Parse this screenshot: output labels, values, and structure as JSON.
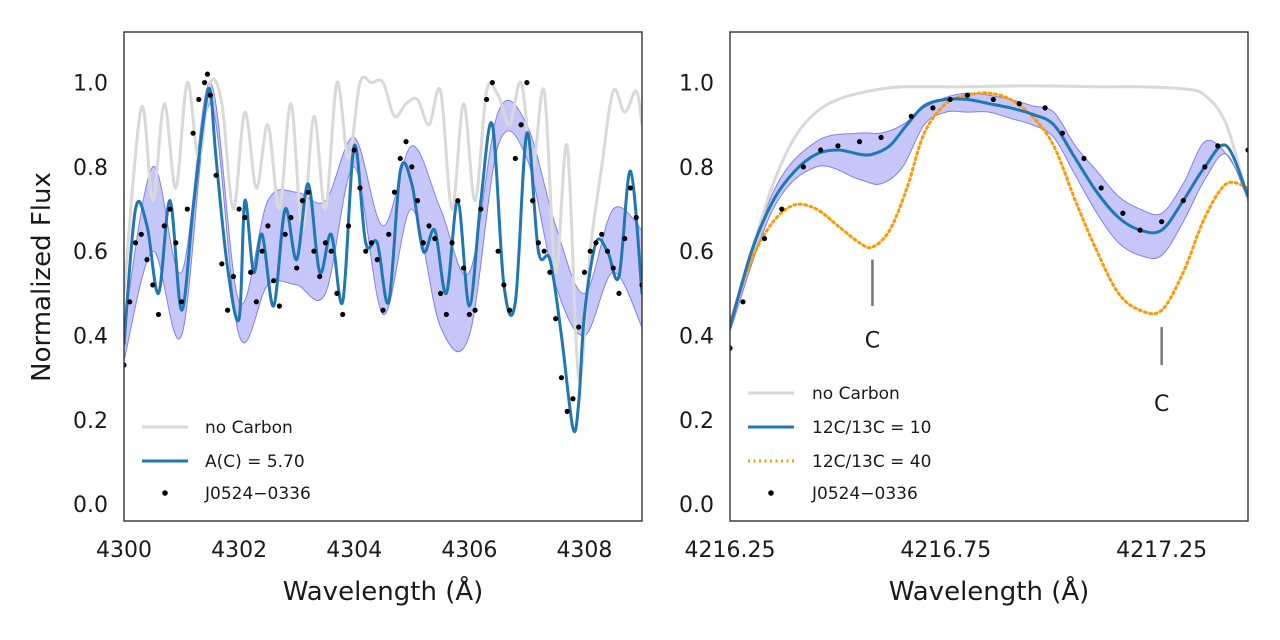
{
  "chart_data": [
    {
      "type": "line",
      "panel": "left",
      "xlabel": "Wavelength (Å)",
      "ylabel": "Normalized Flux",
      "xlim": [
        4300,
        4309
      ],
      "ylim": [
        -0.04,
        1.12
      ],
      "xticks": [
        4300,
        4302,
        4304,
        4306,
        4308
      ],
      "xtick_labels": [
        "4300",
        "4302",
        "4304",
        "4306",
        "4308"
      ],
      "yticks": [
        0.0,
        0.2,
        0.4,
        0.6,
        0.8,
        1.0
      ],
      "ytick_labels": [
        "0.0",
        "0.2",
        "0.4",
        "0.6",
        "0.8",
        "1.0"
      ],
      "legend": {
        "position": "lower-left",
        "entries": [
          "no Carbon",
          "A(C) = 5.70",
          "J0524−0336"
        ]
      },
      "colors": {
        "no_carbon": "#d9d9d9",
        "model": "#1f77b4",
        "band": "#8080f0",
        "data": "#000000"
      },
      "series": [
        {
          "name": "no Carbon",
          "style": "line",
          "x": [
            4300.0,
            4300.3,
            4300.5,
            4300.7,
            4300.9,
            4301.1,
            4301.3,
            4301.5,
            4301.7,
            4301.9,
            4302.1,
            4302.3,
            4302.5,
            4302.7,
            4302.9,
            4303.1,
            4303.3,
            4303.5,
            4303.7,
            4303.9,
            4304.1,
            4304.3,
            4304.5,
            4304.7,
            4304.9,
            4305.1,
            4305.3,
            4305.5,
            4305.7,
            4305.9,
            4306.1,
            4306.3,
            4306.5,
            4306.7,
            4306.9,
            4307.1,
            4307.3,
            4307.5,
            4307.7,
            4307.9,
            4308.1,
            4308.3,
            4308.5,
            4308.7,
            4308.9,
            4309.0
          ],
          "y": [
            0.5,
            0.94,
            0.72,
            0.95,
            0.75,
            1.0,
            0.82,
            1.0,
            0.95,
            0.7,
            0.93,
            0.75,
            0.9,
            0.7,
            0.95,
            0.65,
            0.92,
            0.7,
            1.0,
            0.82,
            1.0,
            1.0,
            1.0,
            0.92,
            0.95,
            0.96,
            0.9,
            0.98,
            0.7,
            0.95,
            0.72,
            0.98,
            0.97,
            0.9,
            1.0,
            0.8,
            0.98,
            0.55,
            0.85,
            0.3,
            0.6,
            0.8,
            0.98,
            0.93,
            0.98,
            0.9
          ]
        },
        {
          "name": "A(C) = 5.70",
          "style": "line",
          "x": [
            4300.0,
            4300.2,
            4300.4,
            4300.6,
            4300.8,
            4301.0,
            4301.2,
            4301.4,
            4301.5,
            4301.6,
            4301.8,
            4302.0,
            4302.1,
            4302.25,
            4302.4,
            4302.6,
            4302.8,
            4303.0,
            4303.2,
            4303.4,
            4303.6,
            4303.8,
            4304.0,
            4304.2,
            4304.4,
            4304.6,
            4304.8,
            4305.0,
            4305.2,
            4305.4,
            4305.6,
            4305.8,
            4306.0,
            4306.2,
            4306.4,
            4306.6,
            4306.8,
            4307.0,
            4307.2,
            4307.4,
            4307.6,
            4307.8,
            4307.9,
            4308.0,
            4308.2,
            4308.4,
            4308.6,
            4308.8,
            4309.0
          ],
          "y": [
            0.38,
            0.7,
            0.66,
            0.5,
            0.72,
            0.46,
            0.7,
            0.93,
            0.98,
            0.82,
            0.56,
            0.44,
            0.72,
            0.55,
            0.64,
            0.47,
            0.7,
            0.58,
            0.76,
            0.55,
            0.64,
            0.48,
            0.85,
            0.62,
            0.62,
            0.48,
            0.79,
            0.76,
            0.6,
            0.65,
            0.5,
            0.72,
            0.47,
            0.72,
            0.9,
            0.52,
            0.48,
            0.88,
            0.6,
            0.58,
            0.4,
            0.18,
            0.24,
            0.45,
            0.62,
            0.6,
            0.54,
            0.79,
            0.5
          ]
        },
        {
          "name": "A(C) band",
          "style": "band",
          "x": [
            4300.0,
            4300.5,
            4301.0,
            4301.5,
            4302.0,
            4302.5,
            4303.0,
            4303.5,
            4304.0,
            4304.5,
            4305.0,
            4305.5,
            4306.0,
            4306.5,
            4307.0,
            4307.5,
            4308.0,
            4308.5,
            4309.0
          ],
          "upper": [
            0.42,
            0.8,
            0.55,
            1.0,
            0.48,
            0.72,
            0.74,
            0.72,
            0.87,
            0.66,
            0.85,
            0.7,
            0.55,
            0.93,
            0.9,
            0.66,
            0.5,
            0.7,
            0.65
          ],
          "lower": [
            0.34,
            0.6,
            0.4,
            0.95,
            0.4,
            0.52,
            0.52,
            0.5,
            0.8,
            0.45,
            0.7,
            0.42,
            0.4,
            0.85,
            0.82,
            0.52,
            0.4,
            0.55,
            0.42
          ]
        },
        {
          "name": "J0524−0336",
          "style": "scatter",
          "x": [
            4300.0,
            4300.1,
            4300.2,
            4300.3,
            4300.4,
            4300.5,
            4300.6,
            4300.7,
            4300.8,
            4300.9,
            4301.0,
            4301.1,
            4301.2,
            4301.3,
            4301.4,
            4301.45,
            4301.5,
            4301.6,
            4301.7,
            4301.8,
            4301.9,
            4302.0,
            4302.1,
            4302.2,
            4302.3,
            4302.4,
            4302.5,
            4302.6,
            4302.7,
            4302.8,
            4302.9,
            4303.0,
            4303.1,
            4303.2,
            4303.3,
            4303.4,
            4303.5,
            4303.6,
            4303.7,
            4303.8,
            4303.9,
            4304.0,
            4304.1,
            4304.2,
            4304.3,
            4304.4,
            4304.5,
            4304.6,
            4304.7,
            4304.8,
            4304.9,
            4305.0,
            4305.1,
            4305.2,
            4305.3,
            4305.4,
            4305.5,
            4305.6,
            4305.7,
            4305.8,
            4305.9,
            4306.0,
            4306.1,
            4306.2,
            4306.3,
            4306.4,
            4306.5,
            4306.6,
            4306.7,
            4306.8,
            4306.9,
            4307.0,
            4307.1,
            4307.2,
            4307.3,
            4307.4,
            4307.5,
            4307.6,
            4307.7,
            4307.8,
            4307.9,
            4308.0,
            4308.1,
            4308.2,
            4308.3,
            4308.4,
            4308.5,
            4308.6,
            4308.7,
            4308.8,
            4308.9,
            4309.0
          ],
          "y": [
            0.33,
            0.48,
            0.62,
            0.64,
            0.58,
            0.52,
            0.45,
            0.66,
            0.7,
            0.62,
            0.48,
            0.7,
            0.88,
            0.96,
            1.0,
            1.02,
            0.97,
            0.78,
            0.57,
            0.46,
            0.54,
            0.7,
            0.68,
            0.55,
            0.48,
            0.6,
            0.66,
            0.53,
            0.47,
            0.64,
            0.68,
            0.56,
            0.72,
            0.74,
            0.6,
            0.54,
            0.62,
            0.6,
            0.5,
            0.45,
            0.66,
            0.84,
            0.75,
            0.6,
            0.62,
            0.58,
            0.46,
            0.64,
            0.74,
            0.82,
            0.86,
            0.8,
            0.72,
            0.62,
            0.66,
            0.63,
            0.5,
            0.45,
            0.62,
            0.72,
            0.56,
            0.45,
            0.46,
            0.7,
            0.96,
            1.0,
            0.6,
            0.52,
            0.46,
            0.82,
            0.9,
            1.0,
            0.72,
            0.62,
            0.6,
            0.55,
            0.44,
            0.3,
            0.22,
            0.25,
            0.42,
            0.55,
            0.6,
            0.62,
            0.64,
            0.6,
            0.56,
            0.5,
            0.63,
            0.75,
            0.68,
            0.52
          ]
        }
      ]
    },
    {
      "type": "line",
      "panel": "right",
      "xlabel": "Wavelength (Å)",
      "ylabel": "",
      "xlim": [
        4216.25,
        4217.45
      ],
      "ylim": [
        -0.04,
        1.12
      ],
      "xticks": [
        4216.25,
        4216.75,
        4217.25
      ],
      "xtick_labels": [
        "4216.25",
        "4216.75",
        "4217.25"
      ],
      "yticks": [
        0.0,
        0.2,
        0.4,
        0.6,
        0.8,
        1.0
      ],
      "ytick_labels": [
        "0.0",
        "0.2",
        "0.4",
        "0.6",
        "0.8",
        "1.0"
      ],
      "legend": {
        "position": "lower-left",
        "entries": [
          "no Carbon",
          "12C/13C = 10",
          "12C/13C = 40",
          "J0524−0336"
        ]
      },
      "annotations": [
        {
          "text": "C",
          "x": 4216.58,
          "y_top": 0.58,
          "y_bottom": 0.47,
          "label_y": 0.39
        },
        {
          "text": "C",
          "x": 4217.25,
          "y_top": 0.42,
          "y_bottom": 0.33,
          "label_y": 0.24
        }
      ],
      "colors": {
        "no_carbon": "#d9d9d9",
        "model_10": "#1f77b4",
        "model_40": "#ff9900",
        "band": "#8080f0",
        "data": "#000000"
      },
      "series": [
        {
          "name": "no Carbon",
          "style": "line",
          "x": [
            4216.25,
            4216.3,
            4216.35,
            4216.4,
            4216.45,
            4216.5,
            4216.55,
            4216.6,
            4216.65,
            4216.7,
            4216.75,
            4216.8,
            4216.9,
            4217.0,
            4217.1,
            4217.2,
            4217.3,
            4217.35,
            4217.4,
            4217.45
          ],
          "y": [
            0.43,
            0.6,
            0.76,
            0.87,
            0.93,
            0.96,
            0.975,
            0.985,
            0.99,
            0.99,
            0.99,
            0.99,
            0.992,
            0.992,
            0.99,
            0.99,
            0.985,
            0.97,
            0.9,
            0.72
          ]
        },
        {
          "name": "12C/13C = 10",
          "style": "line",
          "x": [
            4216.25,
            4216.3,
            4216.35,
            4216.4,
            4216.45,
            4216.5,
            4216.55,
            4216.58,
            4216.62,
            4216.66,
            4216.7,
            4216.75,
            4216.8,
            4216.85,
            4216.9,
            4216.95,
            4217.0,
            4217.05,
            4217.1,
            4217.15,
            4217.2,
            4217.25,
            4217.3,
            4217.35,
            4217.4,
            4217.45
          ],
          "y": [
            0.42,
            0.6,
            0.72,
            0.79,
            0.83,
            0.84,
            0.83,
            0.83,
            0.85,
            0.9,
            0.945,
            0.96,
            0.96,
            0.95,
            0.94,
            0.925,
            0.9,
            0.82,
            0.74,
            0.68,
            0.65,
            0.65,
            0.72,
            0.8,
            0.85,
            0.73
          ]
        },
        {
          "name": "12C/13C = 10 band",
          "style": "band",
          "x": [
            4216.25,
            4216.35,
            4216.45,
            4216.55,
            4216.6,
            4216.65,
            4216.7,
            4216.75,
            4216.8,
            4216.85,
            4216.9,
            4216.95,
            4217.0,
            4217.05,
            4217.1,
            4217.15,
            4217.2,
            4217.25,
            4217.3,
            4217.35,
            4217.4,
            4217.45
          ],
          "upper": [
            0.43,
            0.74,
            0.86,
            0.88,
            0.88,
            0.9,
            0.94,
            0.965,
            0.975,
            0.97,
            0.96,
            0.945,
            0.93,
            0.85,
            0.79,
            0.73,
            0.7,
            0.69,
            0.76,
            0.86,
            0.83,
            0.74
          ],
          "lower": [
            0.41,
            0.7,
            0.8,
            0.77,
            0.76,
            0.8,
            0.9,
            0.93,
            0.93,
            0.93,
            0.915,
            0.9,
            0.87,
            0.78,
            0.69,
            0.62,
            0.59,
            0.59,
            0.67,
            0.77,
            0.83,
            0.72
          ]
        },
        {
          "name": "12C/13C = 40",
          "style": "dotted",
          "x": [
            4216.25,
            4216.3,
            4216.35,
            4216.4,
            4216.45,
            4216.5,
            4216.55,
            4216.58,
            4216.62,
            4216.66,
            4216.7,
            4216.75,
            4216.8,
            4216.85,
            4216.9,
            4216.95,
            4217.0,
            4217.05,
            4217.1,
            4217.15,
            4217.2,
            4217.25,
            4217.3,
            4217.35,
            4217.4,
            4217.45
          ],
          "y": [
            0.43,
            0.58,
            0.67,
            0.71,
            0.7,
            0.66,
            0.62,
            0.61,
            0.65,
            0.75,
            0.88,
            0.95,
            0.97,
            0.975,
            0.96,
            0.92,
            0.85,
            0.72,
            0.6,
            0.5,
            0.46,
            0.46,
            0.55,
            0.68,
            0.76,
            0.75
          ]
        },
        {
          "name": "J0524−0336",
          "style": "scatter",
          "x": [
            4216.25,
            4216.28,
            4216.33,
            4216.37,
            4216.42,
            4216.46,
            4216.5,
            4216.55,
            4216.6,
            4216.67,
            4216.72,
            4216.76,
            4216.8,
            4216.86,
            4216.92,
            4216.98,
            4217.02,
            4217.07,
            4217.11,
            4217.16,
            4217.2,
            4217.25,
            4217.3,
            4217.35,
            4217.38,
            4217.45
          ],
          "y": [
            0.37,
            0.48,
            0.63,
            0.7,
            0.8,
            0.84,
            0.85,
            0.86,
            0.87,
            0.92,
            0.94,
            0.96,
            0.97,
            0.96,
            0.95,
            0.94,
            0.88,
            0.82,
            0.75,
            0.69,
            0.65,
            0.67,
            0.72,
            0.8,
            0.85,
            0.84
          ]
        }
      ]
    }
  ]
}
